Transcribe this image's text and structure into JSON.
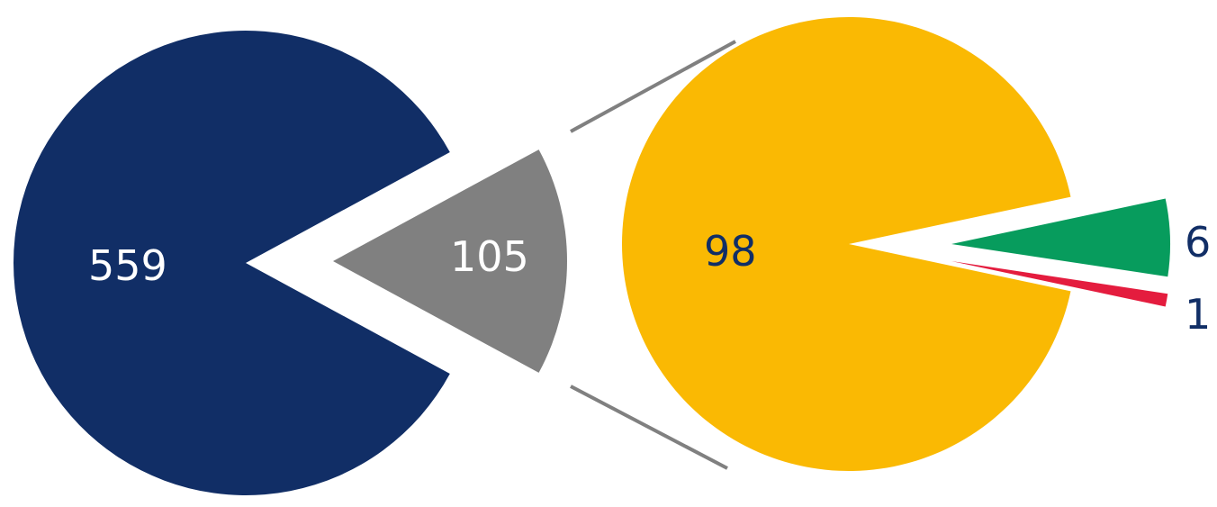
{
  "chart_data": [
    {
      "type": "pie",
      "categories": [
        "",
        ""
      ],
      "values": [
        559,
        105
      ],
      "labels": [
        "559",
        "105"
      ],
      "colors": [
        "#112e66",
        "#808080"
      ],
      "title": ""
    },
    {
      "type": "pie",
      "categories": [
        "",
        "",
        ""
      ],
      "values": [
        98,
        6,
        1
      ],
      "labels": [
        "98",
        "6",
        "1"
      ],
      "colors": [
        "#fab903",
        "#079c5d",
        "#e41c3e"
      ],
      "title": ""
    }
  ],
  "colors": {
    "connector": "#808080",
    "label_light": "#ffffff",
    "label_dark": "#112e66"
  }
}
